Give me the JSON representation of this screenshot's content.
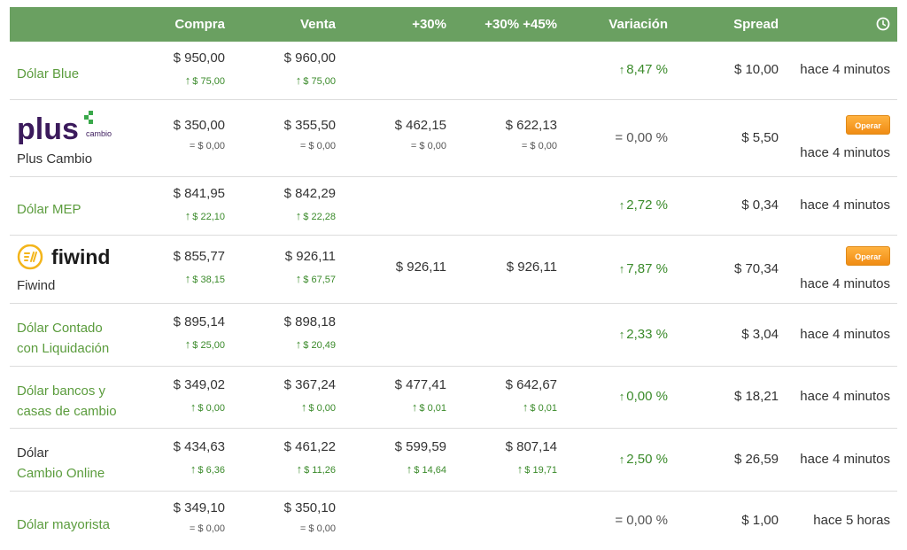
{
  "header": {
    "compra": "Compra",
    "venta": "Venta",
    "p30": "+30%",
    "p3045": "+30% +45%",
    "variacion": "Variación",
    "spread": "Spread",
    "clock_icon": "clock-icon"
  },
  "colors": {
    "header_bg": "#6aa061",
    "green_text": "#5b9c3d",
    "up": "#3a8a2a",
    "button": "#f59a1f"
  },
  "rows": [
    {
      "name": "Dólar Blue",
      "compra": "$ 950,00",
      "compra_chg": "$ 75,00",
      "venta": "$ 960,00",
      "venta_chg": "$ 75,00",
      "variacion": "8,47 %",
      "spread": "$ 10,00",
      "time": "hace 4 minutos"
    },
    {
      "name": "Plus Cambio",
      "logo_text": "plus",
      "logo_sub": "cambio",
      "compra": "$ 350,00",
      "compra_chg": "= $ 0,00",
      "venta": "$ 355,50",
      "venta_chg": "= $ 0,00",
      "p30": "$ 462,15",
      "p30_chg": "= $ 0,00",
      "p3045": "$ 622,13",
      "p3045_chg": "= $ 0,00",
      "variacion": "= 0,00 %",
      "spread": "$ 5,50",
      "button": "Operar",
      "time": "hace 4 minutos"
    },
    {
      "name": "Dólar MEP",
      "compra": "$ 841,95",
      "compra_chg": "$ 22,10",
      "venta": "$ 842,29",
      "venta_chg": "$ 22,28",
      "variacion": "2,72 %",
      "spread": "$ 0,34",
      "time": "hace 4 minutos"
    },
    {
      "name": "Fiwind",
      "logo_text": "fiwind",
      "compra": "$ 855,77",
      "compra_chg": "$ 38,15",
      "venta": "$ 926,11",
      "venta_chg": "$ 67,57",
      "p30": "$ 926,11",
      "p3045": "$ 926,11",
      "variacion": "7,87 %",
      "spread": "$ 70,34",
      "button": "Operar",
      "time": "hace 4 minutos"
    },
    {
      "name_line1": "Dólar Contado",
      "name_line2": "con Liquidación",
      "compra": "$ 895,14",
      "compra_chg": "$ 25,00",
      "venta": "$ 898,18",
      "venta_chg": "$ 20,49",
      "variacion": "2,33 %",
      "spread": "$ 3,04",
      "time": "hace 4 minutos"
    },
    {
      "name_line1": "Dólar bancos y",
      "name_line2": "casas de cambio",
      "compra": "$ 349,02",
      "compra_chg": "$ 0,00",
      "venta": "$ 367,24",
      "venta_chg": "$ 0,00",
      "p30": "$ 477,41",
      "p30_chg": "$ 0,01",
      "p3045": "$ 642,67",
      "p3045_chg": "$ 0,01",
      "variacion": "0,00 %",
      "spread": "$ 18,21",
      "time": "hace 4 minutos"
    },
    {
      "name_line1": "Dólar",
      "name_line2": "Cambio Online",
      "compra": "$ 434,63",
      "compra_chg": "$ 6,36",
      "venta": "$ 461,22",
      "venta_chg": "$ 11,26",
      "p30": "$ 599,59",
      "p30_chg": "$ 14,64",
      "p3045": "$ 807,14",
      "p3045_chg": "$ 19,71",
      "variacion": "2,50 %",
      "spread": "$ 26,59",
      "time": "hace 4 minutos"
    },
    {
      "name": "Dólar mayorista",
      "compra": "$ 349,10",
      "compra_chg": "= $ 0,00",
      "venta": "$ 350,10",
      "venta_chg": "= $ 0,00",
      "variacion": "= 0,00 %",
      "spread": "$ 1,00",
      "time": "hace 5 horas"
    }
  ]
}
